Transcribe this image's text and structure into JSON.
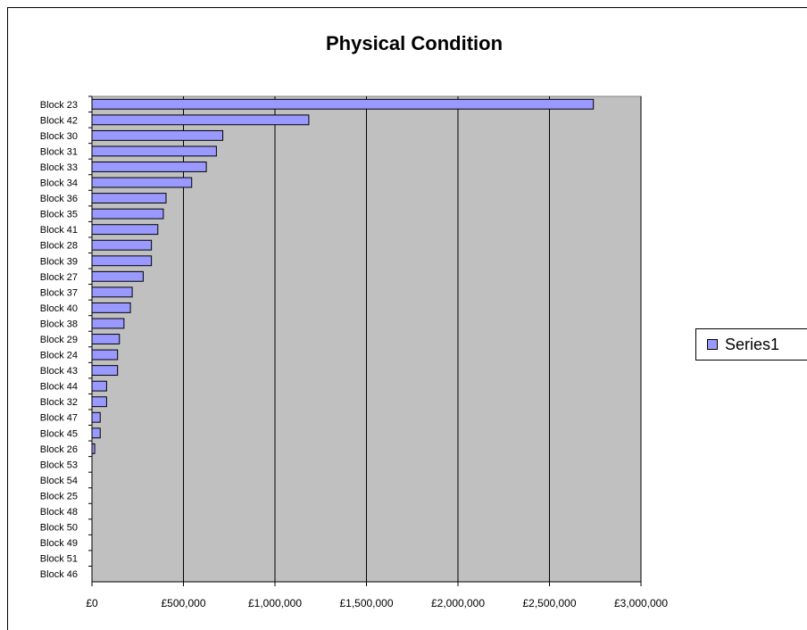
{
  "chart_data": {
    "type": "bar",
    "orientation": "horizontal",
    "title": "Physical Condition",
    "categories": [
      "Block 23",
      "Block 42",
      "Block 30",
      "Block 31",
      "Block 33",
      "Block 34",
      "Block 36",
      "Block 35",
      "Block 41",
      "Block 28",
      "Block 39",
      "Block 27",
      "Block 37",
      "Block 40",
      "Block 38",
      "Block 29",
      "Block 24",
      "Block 43",
      "Block 44",
      "Block 32",
      "Block 47",
      "Block 45",
      "Block 26",
      "Block 53",
      "Block 54",
      "Block 25",
      "Block 48",
      "Block 50",
      "Block 49",
      "Block 51",
      "Block 46"
    ],
    "series": [
      {
        "name": "Series1",
        "values": [
          2740000,
          1185000,
          715000,
          680000,
          625000,
          545000,
          405000,
          390000,
          360000,
          325000,
          325000,
          280000,
          220000,
          210000,
          175000,
          150000,
          140000,
          140000,
          80000,
          80000,
          45000,
          45000,
          15000,
          0,
          0,
          0,
          0,
          0,
          0,
          0,
          0
        ]
      }
    ],
    "xlim": [
      0,
      3000000
    ],
    "xticks": [
      0,
      500000,
      1000000,
      1500000,
      2000000,
      2500000,
      3000000
    ],
    "xtick_labels": [
      "£0",
      "£500,000",
      "£1,000,000",
      "£1,500,000",
      "£2,000,000",
      "£2,500,000",
      "£3,000,000"
    ],
    "grid": "vertical",
    "legend_position": "right",
    "colors": {
      "bar": "#9999ff",
      "plot_bg": "#c0c0c0",
      "bar_edge": "#000000"
    }
  }
}
